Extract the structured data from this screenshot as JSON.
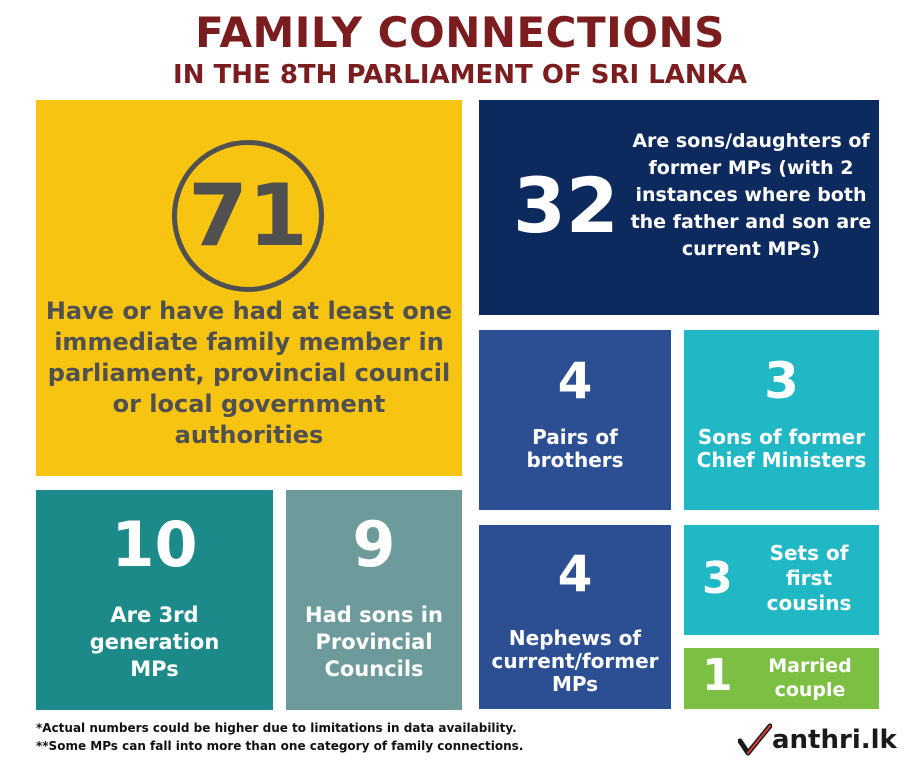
{
  "header": {
    "title": "FAMILY CONNECTIONS",
    "subtitle": "IN THE 8TH PARLIAMENT OF SRI LANKA"
  },
  "stats": {
    "immediate_family": {
      "value": "71",
      "label": "Have or have had at least one immediate family member in parliament, provincial council or local government authorities"
    },
    "children_of_mps": {
      "value": "32",
      "label": "Are sons/daughters of former MPs (with 2 instances where both the father and son are current MPs)"
    },
    "brothers": {
      "value": "4",
      "label": "Pairs of brothers"
    },
    "chief_ministers_sons": {
      "value": "3",
      "label": "Sons of former Chief Ministers"
    },
    "nephews": {
      "value": "4",
      "label": "Nephews of current/former MPs"
    },
    "first_cousins": {
      "value": "3",
      "label": "Sets of first cousins"
    },
    "married": {
      "value": "1",
      "label": "Married couple"
    },
    "third_generation": {
      "value": "10",
      "label": "Are 3rd generation MPs"
    },
    "provincial_sons": {
      "value": "9",
      "label": "Had sons in Provincial Councils"
    }
  },
  "footnotes": {
    "note1": "*Actual numbers could be higher due to limitations in data availability.",
    "note2": "**Some MPs can fall into more than one category of family connections."
  },
  "logo": {
    "text": "anthri.lk",
    "icon": "checkmark-m-logo-icon"
  },
  "colors": {
    "title": "#7b1c1e",
    "yellow": "#f7c511",
    "navy": "#0d2a5e",
    "blue": "#2b4f92",
    "cyan": "#21b8c6",
    "teal": "#1c8a88",
    "grey_teal": "#6d9a9a",
    "green": "#7bc043"
  }
}
